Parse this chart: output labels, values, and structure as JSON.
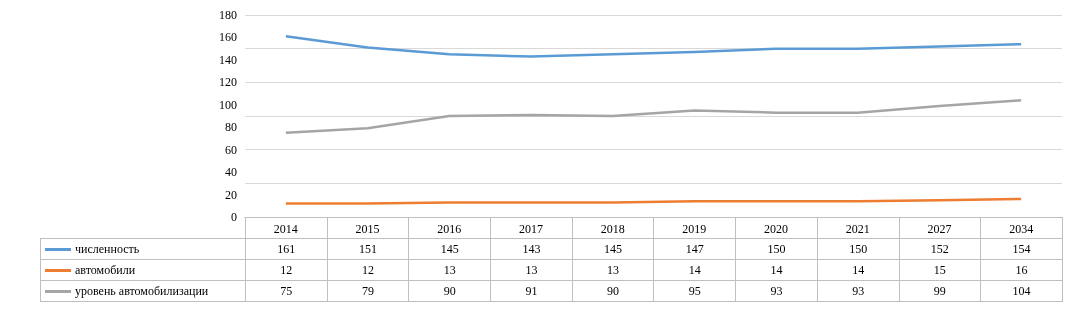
{
  "chart_data": {
    "type": "line",
    "categories": [
      "2014",
      "2015",
      "2016",
      "2017",
      "2018",
      "2019",
      "2020",
      "2021",
      "2027",
      "2034"
    ],
    "series": [
      {
        "name": "численность",
        "color": "#5b9bd5",
        "values": [
          161,
          151,
          145,
          143,
          145,
          147,
          150,
          150,
          152,
          154
        ]
      },
      {
        "name": "автомобили",
        "color": "#ed7d31",
        "values": [
          12,
          12,
          13,
          13,
          13,
          14,
          14,
          14,
          15,
          16
        ]
      },
      {
        "name": "уровень автомобилизации",
        "color": "#a5a5a5",
        "values": [
          75,
          79,
          90,
          91,
          90,
          95,
          93,
          93,
          99,
          104
        ]
      }
    ],
    "ylim": [
      0,
      180
    ],
    "yticks": [
      0,
      20,
      40,
      60,
      80,
      100,
      120,
      140,
      160,
      180
    ],
    "grid": "y",
    "legend": "bottom",
    "marker": "none",
    "line_style": "solid",
    "data_labels": true
  }
}
